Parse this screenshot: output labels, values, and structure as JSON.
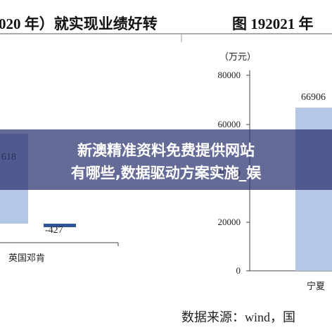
{
  "header": {
    "left": "020 年）就实现业绩好转",
    "right": "图 192021 年"
  },
  "left_chart": {
    "bar_label": "618",
    "negative_label": "-427",
    "category": "英国邓肯"
  },
  "right_chart": {
    "unit": "（万元）",
    "yticks": [
      "80000",
      "60000",
      "40000",
      "20000",
      "0"
    ],
    "bar_label": "66906",
    "category": "宁夏"
  },
  "source": "数据来源：wind，国",
  "banner": [
    "新澳精准资料免费提供网站",
    "有哪些,数据驱动方案实施_娱"
  ]
}
